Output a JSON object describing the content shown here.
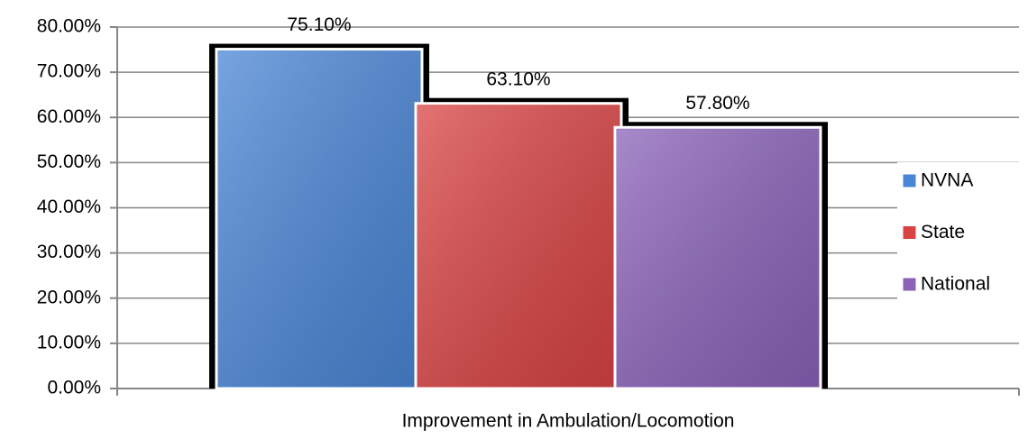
{
  "chart_data": {
    "type": "bar",
    "categories": [
      "Improvement in Ambulation/Locomotion"
    ],
    "series": [
      {
        "name": "NVNA",
        "color": "#4a86d6",
        "values": [
          75.1
        ],
        "value_labels": [
          "75.10%"
        ]
      },
      {
        "name": "State",
        "color": "#d94343",
        "values": [
          63.1
        ],
        "value_labels": [
          "63.10%"
        ]
      },
      {
        "name": "National",
        "color": "#8a63b9",
        "values": [
          57.8
        ],
        "value_labels": [
          "57.80%"
        ]
      }
    ],
    "ylim": [
      0,
      80
    ],
    "yticks": [
      {
        "value": 0,
        "label": "0.00%"
      },
      {
        "value": 10,
        "label": "10.00%"
      },
      {
        "value": 20,
        "label": "20.00%"
      },
      {
        "value": 30,
        "label": "30.00%"
      },
      {
        "value": 40,
        "label": "40.00%"
      },
      {
        "value": 50,
        "label": "50.00%"
      },
      {
        "value": 60,
        "label": "60.00%"
      },
      {
        "value": 70,
        "label": "70.00%"
      },
      {
        "value": 80,
        "label": "80.00%"
      }
    ],
    "grid": true,
    "legend": "right"
  }
}
